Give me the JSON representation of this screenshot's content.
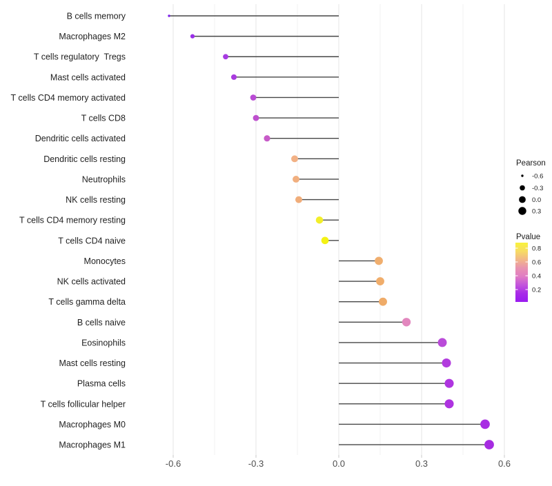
{
  "chart_data": {
    "type": "scatter",
    "variant": "lollipop",
    "title": "",
    "xlabel": "",
    "ylabel": "",
    "xlim": [
      -0.75,
      0.64
    ],
    "grid": true,
    "baseline_x": 0.0,
    "x_major_ticks": [
      -0.6,
      -0.3,
      0.0,
      0.3,
      0.6
    ],
    "x_tick_labels": [
      "-0.6",
      "-0.3",
      "0.0",
      "0.3",
      "0.6"
    ],
    "x_minor_ticks": [
      -0.45,
      -0.15,
      0.15,
      0.45
    ],
    "points": [
      {
        "label": "B cells memory",
        "pearson": -0.615,
        "color": "#7D22E8"
      },
      {
        "label": "Macrophages M2",
        "pearson": -0.53,
        "color": "#9A2FE8"
      },
      {
        "label": "T cells regulatory  Tregs",
        "pearson": -0.41,
        "color": "#A73BE2"
      },
      {
        "label": "Mast cells activated",
        "pearson": -0.38,
        "color": "#A93CDE"
      },
      {
        "label": "T cells CD4 memory activated",
        "pearson": -0.31,
        "color": "#B94BD4"
      },
      {
        "label": "T cells CD8",
        "pearson": -0.3,
        "color": "#BE50CE"
      },
      {
        "label": "Dendritic cells activated",
        "pearson": -0.26,
        "color": "#C75BC8"
      },
      {
        "label": "Dendritic cells resting",
        "pearson": -0.16,
        "color": "#F2B185"
      },
      {
        "label": "Neutrophils",
        "pearson": -0.155,
        "color": "#F1AF7F"
      },
      {
        "label": "NK cells resting",
        "pearson": -0.145,
        "color": "#F0AD7A"
      },
      {
        "label": "T cells CD4 memory resting",
        "pearson": -0.07,
        "color": "#F2EE2A"
      },
      {
        "label": "T cells CD4 naive",
        "pearson": -0.05,
        "color": "#F4F214"
      },
      {
        "label": "Monocytes",
        "pearson": 0.145,
        "color": "#F0AE6E"
      },
      {
        "label": "NK cells activated",
        "pearson": 0.15,
        "color": "#F0AD6B"
      },
      {
        "label": "T cells gamma delta",
        "pearson": 0.16,
        "color": "#EFAB68"
      },
      {
        "label": "B cells naive",
        "pearson": 0.245,
        "color": "#E287BE"
      },
      {
        "label": "Eosinophils",
        "pearson": 0.375,
        "color": "#BA4BD9"
      },
      {
        "label": "Mast cells resting",
        "pearson": 0.39,
        "color": "#B23CDE"
      },
      {
        "label": "Plasma cells",
        "pearson": 0.4,
        "color": "#AF35E0"
      },
      {
        "label": "T cells follicular helper",
        "pearson": 0.4,
        "color": "#AE33E0"
      },
      {
        "label": "Macrophages M0",
        "pearson": 0.53,
        "color": "#A82CE3"
      },
      {
        "label": "Macrophages M1",
        "pearson": 0.545,
        "color": "#A62BE1"
      }
    ],
    "legend_size": {
      "title": "Pearson",
      "entries": [
        "-0.6",
        "-0.3",
        "0.0",
        "0.3"
      ],
      "entry_values": [
        -0.6,
        -0.3,
        0.0,
        0.3
      ],
      "dot_color": "#000000"
    },
    "legend_color": {
      "title": "Pvalue",
      "tick_labels": [
        "0.8",
        "0.6",
        "0.4",
        "0.2"
      ],
      "tick_values": [
        0.8,
        0.6,
        0.4,
        0.2
      ],
      "value_range": [
        0.02,
        0.88
      ],
      "gradient_top_to_bottom": [
        "#F8F23B",
        "#F7DC64",
        "#F2B688",
        "#E893B0",
        "#E07CC4",
        "#C254DC",
        "#A82BE8",
        "#9A1BF0"
      ]
    }
  },
  "colors": {
    "background": "#ffffff",
    "stem": "#454545",
    "grid_major": "#e4e4e4",
    "grid_minor": "#f1f1f1",
    "axis_tick": "#c8c8c8",
    "axis_text": "#4d4d4d",
    "label_text": "#1f1f1f"
  }
}
